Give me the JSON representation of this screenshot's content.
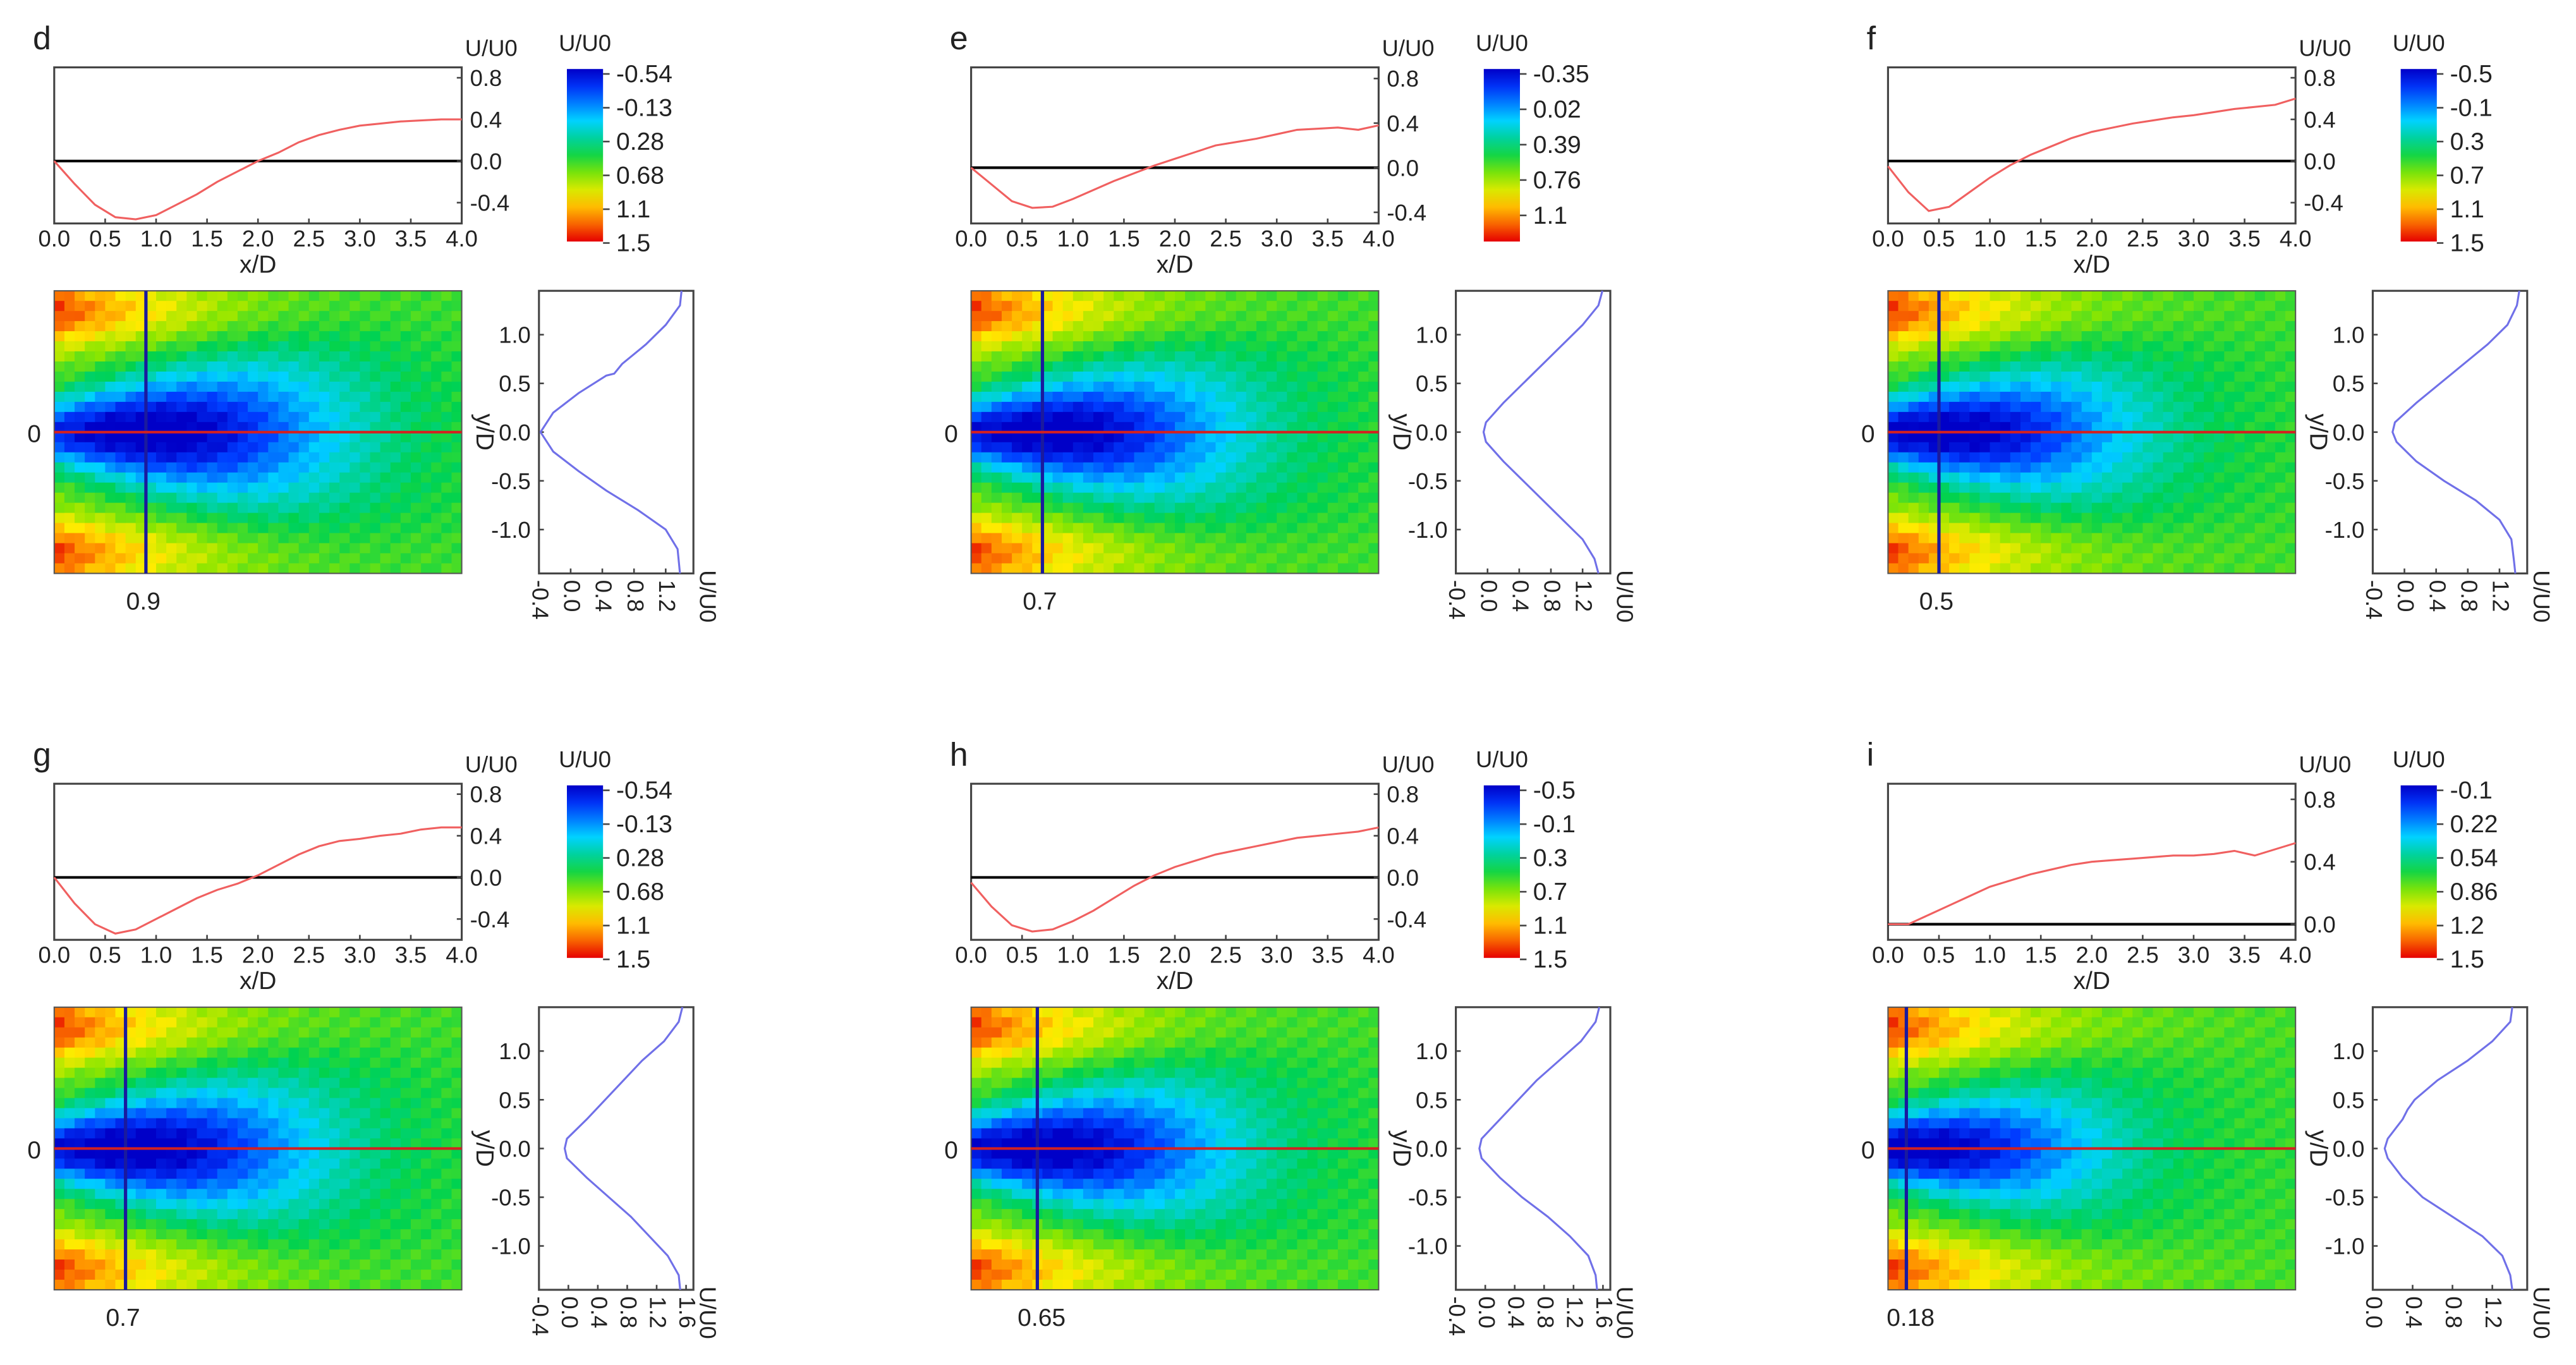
{
  "figure": {
    "axis_labels": {
      "profile_x": "x/D",
      "profile_y": "U/U0",
      "colorbar": "U/U0",
      "transverse_y": "y/D",
      "transverse_x": "U/U0",
      "map_origin": "0"
    }
  },
  "chart_data": [
    {
      "panel": "d",
      "type": "line",
      "centerline": {
        "xlabel": "x/D",
        "ylabel": "U/U0",
        "xlim": [
          0,
          4
        ],
        "ylim": [
          -0.6,
          0.9
        ],
        "x": [
          0,
          0.2,
          0.4,
          0.6,
          0.8,
          1.0,
          1.2,
          1.4,
          1.6,
          1.8,
          2.0,
          2.2,
          2.4,
          2.6,
          2.8,
          3.0,
          3.2,
          3.4,
          3.6,
          3.8,
          4.0
        ],
        "y": [
          0,
          -0.22,
          -0.42,
          -0.54,
          -0.56,
          -0.52,
          -0.42,
          -0.32,
          -0.2,
          -0.1,
          0,
          0.08,
          0.18,
          0.25,
          0.3,
          0.34,
          0.36,
          0.38,
          0.39,
          0.4,
          0.4
        ]
      },
      "colorbar": {
        "label": "U/U0",
        "ticks": [
          "-0.54",
          "-0.13",
          "0.28",
          "0.68",
          "1.1",
          "1.5"
        ]
      },
      "cross_section_label": "0.9",
      "transverse": {
        "xlabel": "U/U0",
        "ylabel": "y/D",
        "xlim": [
          -0.4,
          1.55
        ],
        "ylim": [
          -1.45,
          1.45
        ],
        "x_ticks": [
          "-0.4",
          "0.0",
          "0.4",
          "0.8",
          "1.2"
        ],
        "y_ticks": [
          "1.0",
          "0.5",
          "0.0",
          "-0.5",
          "-1.0"
        ],
        "y": [
          1.45,
          1.3,
          1.1,
          0.9,
          0.7,
          0.6,
          0.58,
          0.4,
          0.2,
          0,
          -0.2,
          -0.4,
          -0.6,
          -0.8,
          -1.0,
          -1.2,
          -1.45
        ],
        "u": [
          1.4,
          1.38,
          1.2,
          0.95,
          0.65,
          0.55,
          0.45,
          0.1,
          -0.22,
          -0.38,
          -0.22,
          0.1,
          0.45,
          0.85,
          1.2,
          1.35,
          1.38
        ]
      }
    },
    {
      "panel": "e",
      "type": "line",
      "centerline": {
        "xlabel": "x/D",
        "ylabel": "U/U0",
        "xlim": [
          0,
          4
        ],
        "ylim": [
          -0.5,
          0.9
        ],
        "x": [
          0,
          0.2,
          0.4,
          0.6,
          0.8,
          1.0,
          1.2,
          1.4,
          1.6,
          1.8,
          2.0,
          2.2,
          2.4,
          2.6,
          2.8,
          3.0,
          3.2,
          3.4,
          3.6,
          3.8,
          4.0
        ],
        "y": [
          0,
          -0.15,
          -0.3,
          -0.36,
          -0.35,
          -0.28,
          -0.2,
          -0.12,
          -0.05,
          0.02,
          0.08,
          0.14,
          0.2,
          0.23,
          0.26,
          0.3,
          0.34,
          0.35,
          0.36,
          0.34,
          0.38
        ]
      },
      "colorbar": {
        "label": "U/U0",
        "ticks": [
          "-0.35",
          "0.02",
          "0.39",
          "0.76",
          "1.1"
        ]
      },
      "cross_section_label": "0.7",
      "transverse": {
        "xlabel": "U/U0",
        "ylabel": "y/D",
        "xlim": [
          -0.4,
          1.55
        ],
        "ylim": [
          -1.45,
          1.45
        ],
        "x_ticks": [
          "-0.4",
          "0.0",
          "0.4",
          "0.8",
          "1.2"
        ],
        "y_ticks": [
          "1.0",
          "0.5",
          "0.0",
          "-0.5",
          "-1.0"
        ],
        "y": [
          1.45,
          1.3,
          1.1,
          0.9,
          0.7,
          0.5,
          0.3,
          0.1,
          0,
          -0.1,
          -0.3,
          -0.5,
          -0.7,
          -0.9,
          -1.1,
          -1.3,
          -1.45
        ],
        "u": [
          1.45,
          1.4,
          1.2,
          0.95,
          0.7,
          0.45,
          0.2,
          -0.02,
          -0.05,
          -0.02,
          0.2,
          0.45,
          0.7,
          0.95,
          1.2,
          1.35,
          1.4
        ]
      }
    },
    {
      "panel": "f",
      "type": "line",
      "centerline": {
        "xlabel": "x/D",
        "ylabel": "U/U0",
        "xlim": [
          0,
          4
        ],
        "ylim": [
          -0.6,
          0.9
        ],
        "x": [
          0,
          0.2,
          0.4,
          0.6,
          0.8,
          1.0,
          1.2,
          1.4,
          1.6,
          1.8,
          2.0,
          2.2,
          2.4,
          2.6,
          2.8,
          3.0,
          3.2,
          3.4,
          3.6,
          3.8,
          4.0
        ],
        "y": [
          -0.05,
          -0.3,
          -0.48,
          -0.44,
          -0.3,
          -0.16,
          -0.04,
          0.06,
          0.14,
          0.22,
          0.28,
          0.32,
          0.36,
          0.39,
          0.42,
          0.44,
          0.47,
          0.5,
          0.52,
          0.54,
          0.6
        ]
      },
      "colorbar": {
        "label": "U/U0",
        "ticks": [
          "-0.5",
          "-0.1",
          "0.3",
          "0.7",
          "1.1",
          "1.5"
        ]
      },
      "cross_section_label": "0.5",
      "transverse": {
        "xlabel": "U/U0",
        "ylabel": "y/D",
        "xlim": [
          -0.4,
          1.55
        ],
        "ylim": [
          -1.45,
          1.45
        ],
        "x_ticks": [
          "-0.4",
          "0.0",
          "0.4",
          "0.8",
          "1.2"
        ],
        "y_ticks": [
          "1.0",
          "0.5",
          "0.0",
          "-0.5",
          "-1.0"
        ],
        "y": [
          1.45,
          1.3,
          1.1,
          0.9,
          0.7,
          0.5,
          0.3,
          0.1,
          0,
          -0.1,
          -0.3,
          -0.5,
          -0.7,
          -0.9,
          -1.1,
          -1.3,
          -1.45
        ],
        "u": [
          1.45,
          1.42,
          1.3,
          1.05,
          0.75,
          0.45,
          0.15,
          -0.12,
          -0.15,
          -0.1,
          0.15,
          0.5,
          0.9,
          1.2,
          1.35,
          1.38,
          1.4
        ]
      }
    },
    {
      "panel": "g",
      "type": "line",
      "centerline": {
        "xlabel": "x/D",
        "ylabel": "U/U0",
        "xlim": [
          0,
          4
        ],
        "ylim": [
          -0.6,
          0.9
        ],
        "x": [
          0,
          0.2,
          0.4,
          0.6,
          0.8,
          1.0,
          1.2,
          1.4,
          1.6,
          1.8,
          2.0,
          2.2,
          2.4,
          2.6,
          2.8,
          3.0,
          3.2,
          3.4,
          3.6,
          3.8,
          4.0
        ],
        "y": [
          0,
          -0.25,
          -0.45,
          -0.54,
          -0.5,
          -0.4,
          -0.3,
          -0.2,
          -0.12,
          -0.06,
          0.02,
          0.12,
          0.22,
          0.3,
          0.35,
          0.37,
          0.4,
          0.42,
          0.46,
          0.48,
          0.48
        ]
      },
      "colorbar": {
        "label": "U/U0",
        "ticks": [
          "-0.54",
          "-0.13",
          "0.28",
          "0.68",
          "1.1",
          "1.5"
        ]
      },
      "cross_section_label": "0.7",
      "transverse": {
        "xlabel": "U/U0",
        "ylabel": "y/D",
        "xlim": [
          -0.4,
          1.7
        ],
        "ylim": [
          -1.45,
          1.45
        ],
        "x_ticks": [
          "-0.4",
          "0.0",
          "0.4",
          "0.8",
          "1.2",
          "1.6"
        ],
        "y_ticks": [
          "1.0",
          "0.5",
          "0.0",
          "-0.5",
          "-1.0"
        ],
        "y": [
          1.45,
          1.3,
          1.1,
          0.9,
          0.7,
          0.5,
          0.3,
          0.1,
          0,
          -0.1,
          -0.3,
          -0.5,
          -0.7,
          -0.9,
          -1.1,
          -1.3,
          -1.45
        ],
        "u": [
          1.55,
          1.5,
          1.3,
          1.0,
          0.75,
          0.5,
          0.25,
          -0.02,
          -0.05,
          -0.02,
          0.25,
          0.55,
          0.85,
          1.1,
          1.35,
          1.5,
          1.52
        ]
      }
    },
    {
      "panel": "h",
      "type": "line",
      "centerline": {
        "xlabel": "x/D",
        "ylabel": "U/U0",
        "xlim": [
          0,
          4
        ],
        "ylim": [
          -0.6,
          0.9
        ],
        "x": [
          0,
          0.2,
          0.4,
          0.6,
          0.8,
          1.0,
          1.2,
          1.4,
          1.6,
          1.8,
          2.0,
          2.2,
          2.4,
          2.6,
          2.8,
          3.0,
          3.2,
          3.4,
          3.6,
          3.8,
          4.0
        ],
        "y": [
          -0.05,
          -0.28,
          -0.46,
          -0.52,
          -0.5,
          -0.42,
          -0.32,
          -0.2,
          -0.08,
          0.02,
          0.1,
          0.16,
          0.22,
          0.26,
          0.3,
          0.34,
          0.38,
          0.4,
          0.42,
          0.44,
          0.48
        ]
      },
      "colorbar": {
        "label": "U/U0",
        "ticks": [
          "-0.5",
          "-0.1",
          "0.3",
          "0.7",
          "1.1",
          "1.5"
        ]
      },
      "cross_section_label": "0.65",
      "transverse": {
        "xlabel": "U/U0",
        "ylabel": "y/D",
        "xlim": [
          -0.4,
          1.7
        ],
        "ylim": [
          -1.45,
          1.45
        ],
        "x_ticks": [
          "-0.4",
          "0.0",
          "0.4",
          "0.8",
          "1.2",
          "1.6"
        ],
        "y_ticks": [
          "1.0",
          "0.5",
          "0.0",
          "-0.5",
          "-1.0"
        ],
        "y": [
          1.45,
          1.3,
          1.1,
          0.9,
          0.7,
          0.5,
          0.3,
          0.1,
          0,
          -0.1,
          -0.3,
          -0.5,
          -0.7,
          -0.9,
          -1.1,
          -1.3,
          -1.45
        ],
        "u": [
          1.55,
          1.5,
          1.3,
          1.0,
          0.7,
          0.45,
          0.2,
          -0.05,
          -0.08,
          -0.05,
          0.2,
          0.5,
          0.85,
          1.15,
          1.4,
          1.5,
          1.52
        ]
      }
    },
    {
      "panel": "i",
      "type": "line",
      "centerline": {
        "xlabel": "x/D",
        "ylabel": "U/U0",
        "xlim": [
          0,
          4
        ],
        "ylim": [
          -0.1,
          0.9
        ],
        "x": [
          0,
          0.2,
          0.4,
          0.6,
          0.8,
          1.0,
          1.2,
          1.4,
          1.6,
          1.8,
          2.0,
          2.2,
          2.4,
          2.6,
          2.8,
          3.0,
          3.2,
          3.4,
          3.6,
          3.8,
          4.0
        ],
        "y": [
          0,
          0.0,
          0.06,
          0.12,
          0.18,
          0.24,
          0.28,
          0.32,
          0.35,
          0.38,
          0.4,
          0.41,
          0.42,
          0.43,
          0.44,
          0.44,
          0.45,
          0.47,
          0.44,
          0.48,
          0.52
        ]
      },
      "colorbar": {
        "label": "U/U0",
        "ticks": [
          "-0.1",
          "0.22",
          "0.54",
          "0.86",
          "1.2",
          "1.5"
        ]
      },
      "cross_section_label": "0.18",
      "transverse": {
        "xlabel": "U/U0",
        "ylabel": "y/D",
        "xlim": [
          0.0,
          1.55
        ],
        "ylim": [
          -1.45,
          1.45
        ],
        "x_ticks": [
          "0.0",
          "0.4",
          "0.8",
          "1.2"
        ],
        "y_ticks": [
          "1.0",
          "0.5",
          "0.0",
          "-0.5",
          "-1.0"
        ],
        "y": [
          1.45,
          1.3,
          1.1,
          0.9,
          0.7,
          0.5,
          0.4,
          0.3,
          0.1,
          0,
          -0.1,
          -0.3,
          -0.5,
          -0.7,
          -0.9,
          -1.1,
          -1.3,
          -1.45
        ],
        "u": [
          1.4,
          1.38,
          1.2,
          0.95,
          0.65,
          0.42,
          0.35,
          0.3,
          0.15,
          0.12,
          0.15,
          0.3,
          0.5,
          0.8,
          1.1,
          1.3,
          1.38,
          1.4
        ]
      }
    }
  ]
}
